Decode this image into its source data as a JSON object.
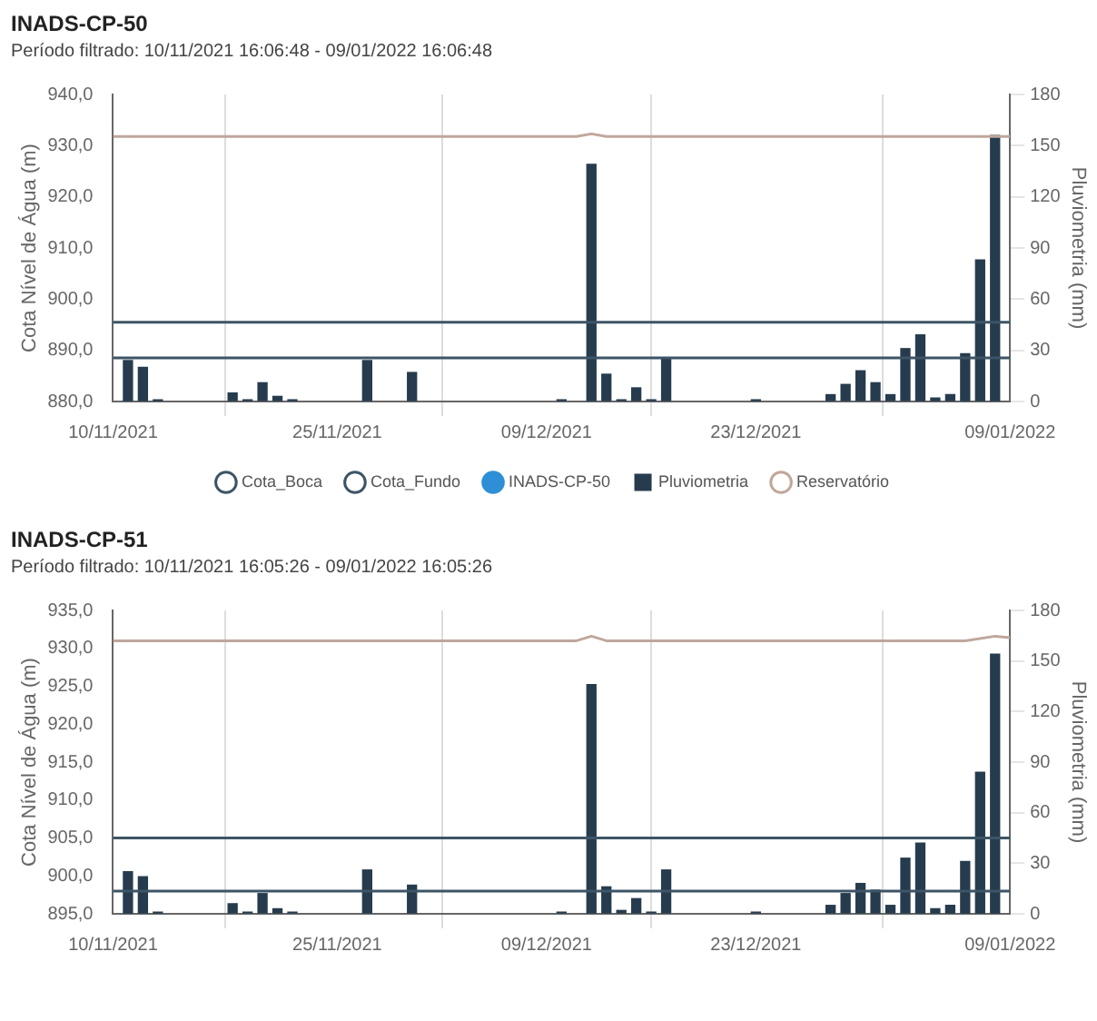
{
  "chart_data": [
    {
      "type": "bar",
      "title": "INADS-CP-50",
      "subtitle": "Período filtrado: 10/11/2021 16:06:48 - 09/01/2022 16:06:48",
      "ylabel": "Cota Nível de Água (m)",
      "y2label": "Pluviometria (mm)",
      "xlim": [
        "2021-11-10",
        "2022-01-09"
      ],
      "xticks": [
        {
          "value": "2021-11-10",
          "label": "10/11/2021"
        },
        {
          "value": "2021-11-25",
          "label": "25/11/2021"
        },
        {
          "value": "2021-12-09",
          "label": "09/12/2021"
        },
        {
          "value": "2021-12-23",
          "label": "23/12/2021"
        },
        {
          "value": "2022-01-09",
          "label": "09/01/2022"
        }
      ],
      "ylim": [
        880,
        940
      ],
      "yticks": [
        {
          "value": 880,
          "label": "880,0"
        },
        {
          "value": 890,
          "label": "890,0"
        },
        {
          "value": 900,
          "label": "900,0"
        },
        {
          "value": 910,
          "label": "910,0"
        },
        {
          "value": 920,
          "label": "920,0"
        },
        {
          "value": 930,
          "label": "930,0"
        },
        {
          "value": 940,
          "label": "940,0"
        }
      ],
      "y2lim": [
        0,
        180
      ],
      "y2ticks": [
        0,
        30,
        60,
        90,
        120,
        150,
        180
      ],
      "grid": "x",
      "legend": "bottom",
      "series": [
        {
          "name": "Cota_Boca",
          "type": "line",
          "color": "#3d5566",
          "x": [
            "2021-11-10",
            "2022-01-09"
          ],
          "values": [
            895.5,
            895.5
          ]
        },
        {
          "name": "Cota_Fundo",
          "type": "line",
          "color": "#3d5566",
          "x": [
            "2021-11-10",
            "2022-01-09"
          ],
          "values": [
            888.5,
            888.5
          ]
        },
        {
          "name": "INADS-CP-50",
          "type": "line",
          "color": "#2e8fd6"
        },
        {
          "name": "Pluviometria",
          "axis": "y2",
          "color": "#263c4e",
          "x": [
            "2021-11-11",
            "2021-11-12",
            "2021-11-13",
            "2021-11-18",
            "2021-11-19",
            "2021-11-20",
            "2021-11-21",
            "2021-11-22",
            "2021-11-27",
            "2021-11-30",
            "2021-12-10",
            "2021-12-12",
            "2021-12-13",
            "2021-12-14",
            "2021-12-15",
            "2021-12-16",
            "2021-12-17",
            "2021-12-23",
            "2021-12-28",
            "2021-12-29",
            "2021-12-30",
            "2021-12-31",
            "2022-01-01",
            "2022-01-02",
            "2022-01-03",
            "2022-01-04",
            "2022-01-05",
            "2022-01-06",
            "2022-01-07",
            "2022-01-08"
          ],
          "values": [
            24,
            20,
            1,
            5,
            1,
            11,
            3,
            1,
            24,
            17,
            1,
            139,
            16,
            1,
            8,
            1,
            25,
            1,
            4,
            10,
            18,
            11,
            4,
            31,
            39,
            2,
            4,
            28,
            83,
            156
          ]
        },
        {
          "name": "Reservatório",
          "type": "line",
          "color": "#c0a79c",
          "x": [
            "2021-11-10",
            "2021-12-11",
            "2021-12-12",
            "2021-12-13",
            "2022-01-09"
          ],
          "values": [
            931.8,
            931.8,
            932.3,
            931.8,
            931.8
          ]
        }
      ]
    },
    {
      "type": "bar",
      "title": "INADS-CP-51",
      "subtitle": "Período filtrado: 10/11/2021 16:05:26 - 09/01/2022 16:05:26",
      "ylabel": "Cota Nível de Água (m)",
      "y2label": "Pluviometria (mm)",
      "xlim": [
        "2021-11-10",
        "2022-01-09"
      ],
      "xticks": [
        {
          "value": "2021-11-10",
          "label": "10/11/2021"
        },
        {
          "value": "2021-11-25",
          "label": "25/11/2021"
        },
        {
          "value": "2021-12-09",
          "label": "09/12/2021"
        },
        {
          "value": "2021-12-23",
          "label": "23/12/2021"
        },
        {
          "value": "2022-01-09",
          "label": "09/01/2022"
        }
      ],
      "ylim": [
        895,
        935
      ],
      "yticks": [
        {
          "value": 895,
          "label": "895,0"
        },
        {
          "value": 900,
          "label": "900,0"
        },
        {
          "value": 905,
          "label": "905,0"
        },
        {
          "value": 910,
          "label": "910,0"
        },
        {
          "value": 915,
          "label": "915,0"
        },
        {
          "value": 920,
          "label": "920,0"
        },
        {
          "value": 925,
          "label": "925,0"
        },
        {
          "value": 930,
          "label": "930,0"
        },
        {
          "value": 935,
          "label": "935,0"
        }
      ],
      "y2lim": [
        0,
        180
      ],
      "y2ticks": [
        0,
        30,
        60,
        90,
        120,
        150,
        180
      ],
      "grid": "x",
      "series": [
        {
          "type": "line",
          "color": "#3d5566",
          "x": [
            "2021-11-10",
            "2022-01-09"
          ],
          "values": [
            905,
            905
          ]
        },
        {
          "type": "line",
          "color": "#3d5566",
          "x": [
            "2021-11-10",
            "2022-01-09"
          ],
          "values": [
            898,
            898
          ]
        },
        {
          "axis": "y2",
          "color": "#263c4e",
          "x": [
            "2021-11-11",
            "2021-11-12",
            "2021-11-13",
            "2021-11-18",
            "2021-11-19",
            "2021-11-20",
            "2021-11-21",
            "2021-11-22",
            "2021-11-27",
            "2021-11-30",
            "2021-12-10",
            "2021-12-12",
            "2021-12-13",
            "2021-12-14",
            "2021-12-15",
            "2021-12-16",
            "2021-12-17",
            "2021-12-23",
            "2021-12-28",
            "2021-12-29",
            "2021-12-30",
            "2021-12-31",
            "2022-01-01",
            "2022-01-02",
            "2022-01-03",
            "2022-01-04",
            "2022-01-05",
            "2022-01-06",
            "2022-01-07",
            "2022-01-08"
          ],
          "values": [
            25,
            22,
            1,
            6,
            1,
            12,
            3,
            1,
            26,
            17,
            1,
            136,
            16,
            2,
            9,
            1,
            26,
            1,
            5,
            12,
            18,
            14,
            5,
            33,
            42,
            3,
            5,
            31,
            84,
            154
          ]
        },
        {
          "type": "line",
          "color": "#c0a79c",
          "x": [
            "2021-11-10",
            "2021-12-11",
            "2021-12-12",
            "2021-12-13",
            "2022-01-06",
            "2022-01-08",
            "2022-01-09"
          ],
          "values": [
            931,
            931,
            931.6,
            931,
            931,
            931.6,
            931.4
          ]
        }
      ]
    }
  ]
}
